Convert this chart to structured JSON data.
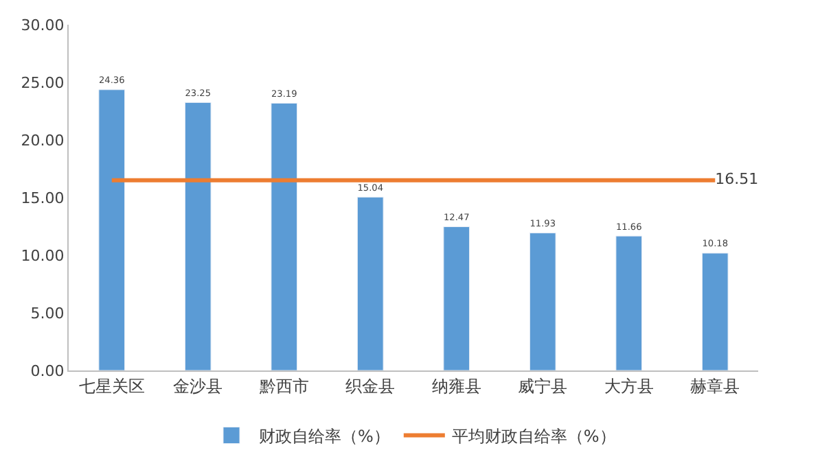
{
  "chart_data": {
    "type": "bar",
    "categories": [
      "七星关区",
      "金沙县",
      "黔西市",
      "织金县",
      "纳雍县",
      "威宁县",
      "大方县",
      "赫章县"
    ],
    "series": [
      {
        "name": "财政自给率（%）",
        "color": "#5b9bd5",
        "values": [
          24.36,
          23.25,
          23.19,
          15.04,
          12.47,
          11.93,
          11.66,
          10.18
        ],
        "value_labels": [
          "24.36",
          "23.25",
          "23.19",
          "15.04",
          "12.47",
          "11.93",
          "11.66",
          "10.18"
        ]
      },
      {
        "name": "平均财政自给率（%）",
        "type": "line",
        "color": "#ed7d31",
        "marker": "none",
        "values": [
          16.51,
          16.51,
          16.51,
          16.51,
          16.51,
          16.51,
          16.51,
          16.51
        ],
        "value_labels": [
          null,
          null,
          null,
          null,
          null,
          null,
          null,
          "16.51"
        ]
      }
    ],
    "ylim": [
      0,
      30
    ],
    "yticks": [
      {
        "value": 0,
        "label": "0.00"
      },
      {
        "value": 5,
        "label": "5.00"
      },
      {
        "value": 10,
        "label": "10.00"
      },
      {
        "value": 15,
        "label": "15.00"
      },
      {
        "value": 20,
        "label": "20.00"
      },
      {
        "value": 25,
        "label": "25.00"
      },
      {
        "value": 30,
        "label": "30.00"
      }
    ],
    "grid": false,
    "legend": "bottom"
  }
}
